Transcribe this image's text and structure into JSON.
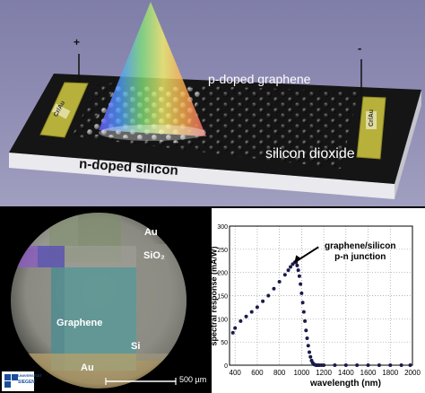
{
  "device": {
    "graphene_label": "p-doped graphene",
    "silicon_label": "n-doped silicon",
    "oxide_label": "silicon dioxide",
    "plus_sign": "+",
    "minus_sign": "-",
    "contact_left": "Cr/Au",
    "contact_right": "Cr/Au"
  },
  "micrograph": {
    "au_top": "Au",
    "sio2": "SiO₂",
    "graphene": "Graphene",
    "si": "Si",
    "au_bottom": "Au",
    "scale_bar": "500 µm",
    "logo_line1": "UNIVERSITÄT",
    "logo_line2": "SIEGEN"
  },
  "chart_data": {
    "type": "line",
    "xlabel": "wavelength (nm)",
    "ylabel": "spectral response (mA/W)",
    "xlim": [
      350,
      2000
    ],
    "ylim": [
      0,
      300
    ],
    "xticks": [
      400,
      600,
      800,
      1000,
      1200,
      1400,
      1600,
      1800,
      2000
    ],
    "yticks": [
      0,
      50,
      100,
      150,
      200,
      250,
      300
    ],
    "grid": true,
    "annotation": "graphene/silicon\np-n junction",
    "annotation_target": [
      910,
      220
    ],
    "series": [
      {
        "x": [
          380,
          400,
          450,
          500,
          550,
          600,
          650,
          700,
          750,
          800,
          850,
          880,
          900,
          920,
          940,
          950,
          960,
          970,
          980,
          990,
          1000,
          1010,
          1020,
          1030,
          1040,
          1050,
          1060,
          1070,
          1080,
          1090,
          1100,
          1110,
          1120,
          1130,
          1140,
          1150,
          1160,
          1180,
          1200,
          1300,
          1400,
          1500,
          1600,
          1700,
          1800,
          1900,
          1980
        ],
        "y": [
          70,
          80,
          95,
          105,
          115,
          125,
          138,
          150,
          165,
          180,
          195,
          205,
          212,
          218,
          222,
          222,
          215,
          205,
          192,
          175,
          155,
          135,
          115,
          95,
          75,
          58,
          42,
          28,
          18,
          10,
          5,
          2,
          1,
          0,
          0,
          0,
          0,
          0,
          0,
          0,
          0,
          0,
          0,
          0,
          0,
          0,
          0
        ]
      }
    ]
  }
}
